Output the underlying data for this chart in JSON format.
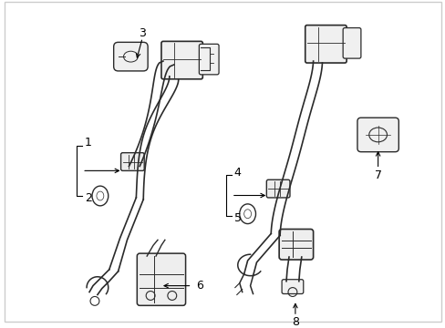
{
  "background_color": "#ffffff",
  "line_color": "#2a2a2a",
  "label_color": "#000000",
  "figure_width": 4.89,
  "figure_height": 3.6,
  "dpi": 100,
  "border_color": "#cccccc"
}
